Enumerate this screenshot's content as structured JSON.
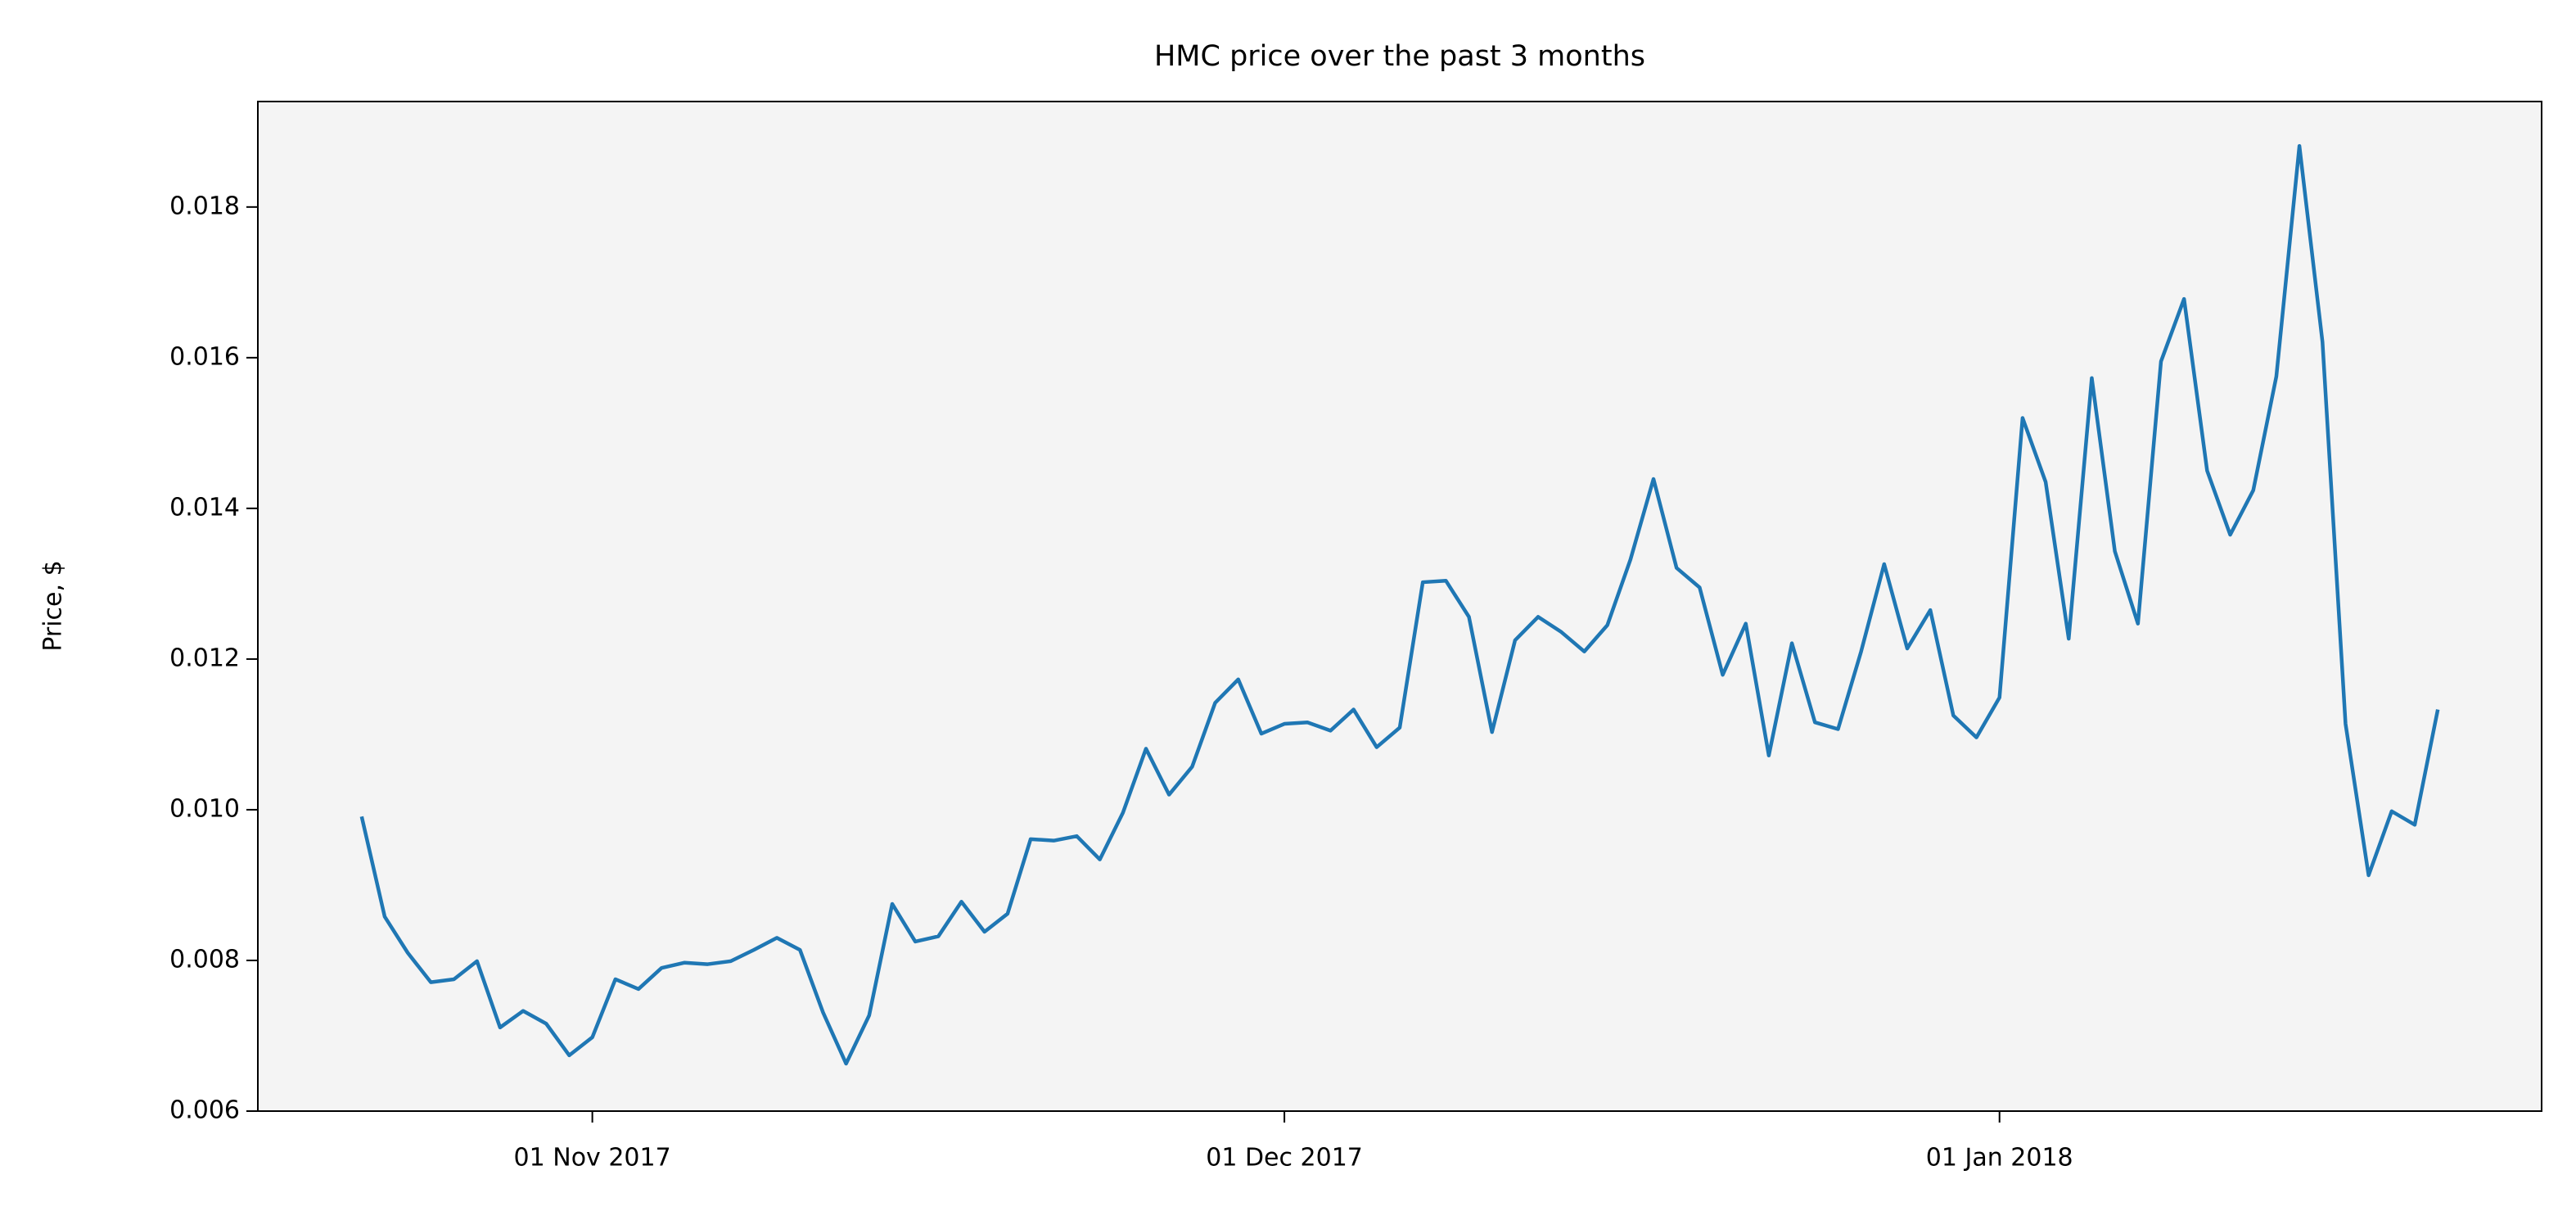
{
  "chart_data": {
    "type": "line",
    "title": "HMC price over the past 3 months",
    "ylabel": "Price, $",
    "x": [
      "2017-10-22",
      "2017-10-23",
      "2017-10-24",
      "2017-10-25",
      "2017-10-26",
      "2017-10-27",
      "2017-10-28",
      "2017-10-29",
      "2017-10-30",
      "2017-10-31",
      "2017-11-01",
      "2017-11-02",
      "2017-11-03",
      "2017-11-04",
      "2017-11-05",
      "2017-11-06",
      "2017-11-07",
      "2017-11-08",
      "2017-11-09",
      "2017-11-10",
      "2017-11-11",
      "2017-11-12",
      "2017-11-13",
      "2017-11-14",
      "2017-11-15",
      "2017-11-16",
      "2017-11-17",
      "2017-11-18",
      "2017-11-19",
      "2017-11-20",
      "2017-11-21",
      "2017-11-22",
      "2017-11-23",
      "2017-11-24",
      "2017-11-25",
      "2017-11-26",
      "2017-11-27",
      "2017-11-28",
      "2017-11-29",
      "2017-11-30",
      "2017-12-01",
      "2017-12-02",
      "2017-12-03",
      "2017-12-04",
      "2017-12-05",
      "2017-12-06",
      "2017-12-07",
      "2017-12-08",
      "2017-12-09",
      "2017-12-10",
      "2017-12-11",
      "2017-12-12",
      "2017-12-13",
      "2017-12-14",
      "2017-12-15",
      "2017-12-16",
      "2017-12-17",
      "2017-12-18",
      "2017-12-19",
      "2017-12-20",
      "2017-12-21",
      "2017-12-22",
      "2017-12-23",
      "2017-12-24",
      "2017-12-25",
      "2017-12-26",
      "2017-12-27",
      "2017-12-28",
      "2017-12-29",
      "2017-12-30",
      "2017-12-31",
      "2018-01-01",
      "2018-01-02",
      "2018-01-03",
      "2018-01-04",
      "2018-01-05",
      "2018-01-06",
      "2018-01-07",
      "2018-01-08",
      "2018-01-09",
      "2018-01-10",
      "2018-01-11",
      "2018-01-12",
      "2018-01-13",
      "2018-01-14",
      "2018-01-15",
      "2018-01-16",
      "2018-01-17",
      "2018-01-18",
      "2018-01-19",
      "2018-01-20"
    ],
    "series": [
      {
        "color": "#1f77b4",
        "values": [
          0.00991,
          0.00858,
          0.0081,
          0.00771,
          0.00775,
          0.00799,
          0.00711,
          0.00733,
          0.00716,
          0.00674,
          0.00698,
          0.00775,
          0.00762,
          0.0079,
          0.00797,
          0.00795,
          0.00799,
          0.00814,
          0.0083,
          0.00814,
          0.00731,
          0.00663,
          0.00727,
          0.00875,
          0.00825,
          0.00832,
          0.00878,
          0.00838,
          0.00862,
          0.00961,
          0.00959,
          0.00965,
          0.00934,
          0.00996,
          0.01081,
          0.0102,
          0.01057,
          0.01142,
          0.01173,
          0.01101,
          0.01114,
          0.01116,
          0.01105,
          0.01133,
          0.01083,
          0.01109,
          0.01302,
          0.01304,
          0.01256,
          0.01103,
          0.01225,
          0.01256,
          0.01236,
          0.0121,
          0.01245,
          0.01332,
          0.01439,
          0.01321,
          0.01295,
          0.01179,
          0.01247,
          0.01072,
          0.01221,
          0.01116,
          0.01107,
          0.0121,
          0.01326,
          0.01214,
          0.01265,
          0.01125,
          0.01096,
          0.01149,
          0.0152,
          0.01435,
          0.01227,
          0.01573,
          0.01343,
          0.01247,
          0.01595,
          0.01678,
          0.0145,
          0.01365,
          0.01424,
          0.01575,
          0.01881,
          0.01621,
          0.01114,
          0.00913,
          0.00998,
          0.0098,
          0.01133
        ]
      }
    ],
    "xlim": [
      "2017-10-17T12:00:00Z",
      "2018-01-24T12:00:00Z"
    ],
    "xticks": [
      {
        "value": "2017-11-01",
        "label": "01 Nov 2017"
      },
      {
        "value": "2017-12-01",
        "label": "01 Dec 2017"
      },
      {
        "value": "2018-01-01",
        "label": "01 Jan 2018"
      }
    ],
    "ylim": [
      0.006,
      0.0194
    ],
    "yticks": [
      0.006,
      0.008,
      {
        "value": 0.01,
        "label": "0.010"
      },
      0.012,
      0.014,
      0.016,
      0.018
    ],
    "grid": false
  }
}
